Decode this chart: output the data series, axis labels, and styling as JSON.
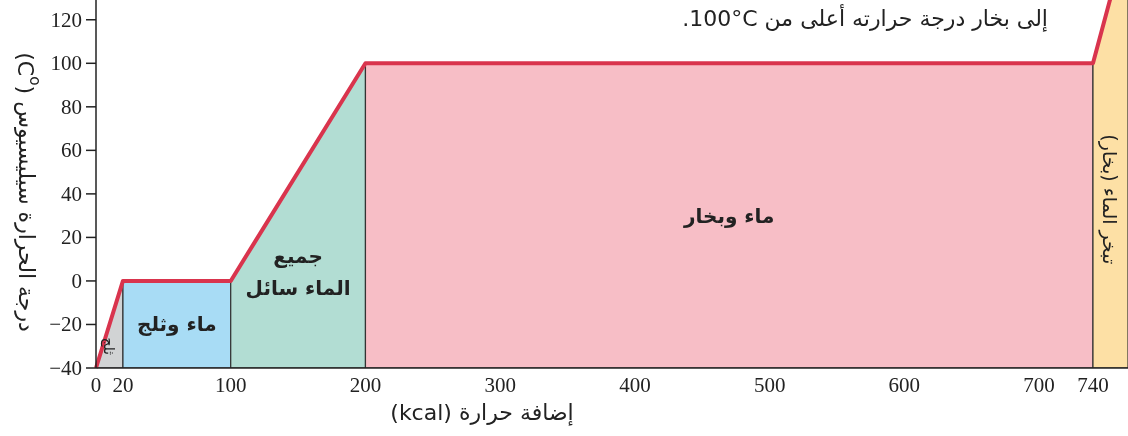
{
  "chart_data": {
    "type": "line",
    "xlabel": "إضافة حرارة (kcal)",
    "ylabel": "درجة الحرارة سيليسيوس (C$^{o}$)",
    "annotations": [
      "إلى بخار درجة حرارته أعلى من 100°C."
    ],
    "xlim": [
      0,
      766
    ],
    "ylim": [
      -40,
      130
    ],
    "xticks": [
      0,
      20,
      100,
      200,
      300,
      400,
      500,
      600,
      700,
      740
    ],
    "yticks": [
      -40,
      -20,
      0,
      20,
      40,
      60,
      80,
      100,
      120
    ],
    "grid": false,
    "series": [
      {
        "color": "#d9344d",
        "x": [
          0,
          20,
          100,
          200,
          740,
          753
        ],
        "values": [
          -40,
          0,
          0,
          100,
          100,
          130
        ]
      }
    ],
    "bands": [
      {
        "axis": "x",
        "from": 0,
        "to": 20,
        "label": "ثلج",
        "color": "#d1d3d4"
      },
      {
        "axis": "x",
        "from": 20,
        "to": 100,
        "label": "ماء وثلج",
        "color": "#a8dcf5"
      },
      {
        "axis": "x",
        "from": 100,
        "to": 200,
        "label": "جميع الماء سائل",
        "color": "#b2ddd3"
      },
      {
        "axis": "x",
        "from": 200,
        "to": 740,
        "label": "ماء وبخار",
        "color": "#f7bec6"
      },
      {
        "axis": "x",
        "from": 740,
        "to": 766,
        "label": "تبخر الماء (بخار)",
        "color": "#fde0a5"
      }
    ]
  }
}
